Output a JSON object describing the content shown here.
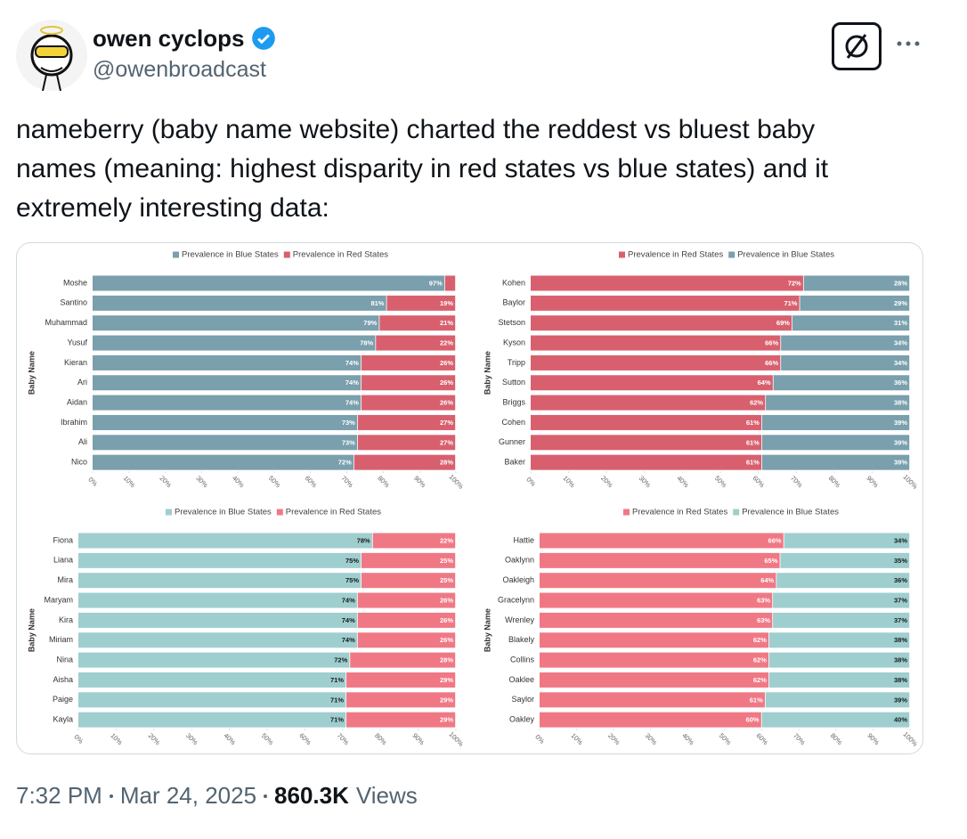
{
  "author": {
    "name": "owen cyclops",
    "handle": "@owenbroadcast"
  },
  "text": "nameberry (baby name website) charted the reddest vs bluest baby names (meaning: highest disparity in red states vs blue states) and it extremely interesting data:",
  "footer": {
    "time": "7:32 PM",
    "date": "Mar 24, 2025",
    "views": "860.3K",
    "views_label": "Views"
  },
  "chart_data": [
    {
      "type": "bar",
      "orientation": "horizontal",
      "stacked": true,
      "y_label": "Baby Name",
      "legend": "top",
      "categories": [
        "Moshe",
        "Santino",
        "Muhammad",
        "Yusuf",
        "Kieran",
        "Ari",
        "Aidan",
        "Ibrahim",
        "Ali",
        "Nico"
      ],
      "series": [
        {
          "name": "Prevalence in Blue States",
          "color": "#7a9fad",
          "values": [
            97,
            81,
            79,
            78,
            74,
            74,
            74,
            73,
            73,
            72
          ],
          "value_labels": [
            "97%",
            "81%",
            "79%",
            "78%",
            "74%",
            "74%",
            "74%",
            "73%",
            "73%",
            "72%"
          ]
        },
        {
          "name": "Prevalence in Red States",
          "color": "#d8606e",
          "values": [
            3,
            19,
            21,
            22,
            26,
            26,
            26,
            27,
            27,
            28
          ],
          "value_labels": [
            null,
            "19%",
            "21%",
            "22%",
            "26%",
            "26%",
            "26%",
            "27%",
            "27%",
            "28%"
          ]
        }
      ],
      "xlim": [
        0,
        100
      ],
      "xticks": [
        {
          "value": 0,
          "label": "0%"
        },
        {
          "value": 10,
          "label": "10%"
        },
        {
          "value": 20,
          "label": "20%"
        },
        {
          "value": 30,
          "label": "30%"
        },
        {
          "value": 40,
          "label": "40%"
        },
        {
          "value": 50,
          "label": "50%"
        },
        {
          "value": 60,
          "label": "60%"
        },
        {
          "value": 70,
          "label": "70%"
        },
        {
          "value": 80,
          "label": "80%"
        },
        {
          "value": 90,
          "label": "90%"
        },
        {
          "value": 100,
          "label": "100%"
        }
      ]
    },
    {
      "type": "bar",
      "orientation": "horizontal",
      "stacked": true,
      "y_label": "Baby Name",
      "legend": "top",
      "categories": [
        "Kohen",
        "Baylor",
        "Stetson",
        "Kyson",
        "Tripp",
        "Sutton",
        "Briggs",
        "Cohen",
        "Gunner",
        "Baker"
      ],
      "series": [
        {
          "name": "Prevalence in Red States",
          "color": "#d8606e",
          "values": [
            72,
            71,
            69,
            66,
            66,
            64,
            62,
            61,
            61,
            61
          ],
          "value_labels": [
            "72%",
            "71%",
            "69%",
            "66%",
            "66%",
            "64%",
            "62%",
            "61%",
            "61%",
            "61%"
          ]
        },
        {
          "name": "Prevalence in Blue States",
          "color": "#7a9fad",
          "values": [
            28,
            29,
            31,
            34,
            34,
            36,
            38,
            39,
            39,
            39
          ],
          "value_labels": [
            "28%",
            "29%",
            "31%",
            "34%",
            "34%",
            "36%",
            "38%",
            "39%",
            "39%",
            "39%"
          ]
        }
      ],
      "xlim": [
        0,
        100
      ],
      "xticks": [
        {
          "value": 0,
          "label": "0%"
        },
        {
          "value": 10,
          "label": "10%"
        },
        {
          "value": 20,
          "label": "20%"
        },
        {
          "value": 30,
          "label": "30%"
        },
        {
          "value": 40,
          "label": "40%"
        },
        {
          "value": 50,
          "label": "50%"
        },
        {
          "value": 60,
          "label": "60%"
        },
        {
          "value": 70,
          "label": "70%"
        },
        {
          "value": 80,
          "label": "80%"
        },
        {
          "value": 90,
          "label": "90%"
        },
        {
          "value": 100,
          "label": "100%"
        }
      ]
    },
    {
      "type": "bar",
      "orientation": "horizontal",
      "stacked": true,
      "y_label": "Baby Name",
      "legend": "top",
      "categories": [
        "Fiona",
        "Liana",
        "Mira",
        "Maryam",
        "Kira",
        "Miriam",
        "Nina",
        "Aisha",
        "Paige",
        "Kayla"
      ],
      "series": [
        {
          "name": "Prevalence in Blue States",
          "color": "#9fcecf",
          "values": [
            78,
            75,
            75,
            74,
            74,
            74,
            72,
            71,
            71,
            71
          ],
          "value_labels": [
            "78%",
            "75%",
            "75%",
            "74%",
            "74%",
            "74%",
            "72%",
            "71%",
            "71%",
            "71%"
          ]
        },
        {
          "name": "Prevalence in Red States",
          "color": "#f07885",
          "values": [
            22,
            25,
            25,
            26,
            26,
            26,
            28,
            29,
            29,
            29
          ],
          "value_labels": [
            "22%",
            "25%",
            "25%",
            "26%",
            "26%",
            "26%",
            "28%",
            "29%",
            "29%",
            "29%"
          ]
        }
      ],
      "xlim": [
        0,
        100
      ],
      "xticks": [
        {
          "value": 0,
          "label": "0%"
        },
        {
          "value": 10,
          "label": "10%"
        },
        {
          "value": 20,
          "label": "20%"
        },
        {
          "value": 30,
          "label": "30%"
        },
        {
          "value": 40,
          "label": "40%"
        },
        {
          "value": 50,
          "label": "50%"
        },
        {
          "value": 60,
          "label": "60%"
        },
        {
          "value": 70,
          "label": "70%"
        },
        {
          "value": 80,
          "label": "80%"
        },
        {
          "value": 90,
          "label": "90%"
        },
        {
          "value": 100,
          "label": "100%"
        }
      ]
    },
    {
      "type": "bar",
      "orientation": "horizontal",
      "stacked": true,
      "y_label": "Baby Name",
      "legend": "top",
      "categories": [
        "Hattie",
        "Oaklynn",
        "Oakleigh",
        "Gracelynn",
        "Wrenley",
        "Blakely",
        "Collins",
        "Oaklee",
        "Saylor",
        "Oakley"
      ],
      "series": [
        {
          "name": "Prevalence in Red States",
          "color": "#f07885",
          "values": [
            66,
            65,
            64,
            63,
            63,
            62,
            62,
            62,
            61,
            60
          ],
          "value_labels": [
            "66%",
            "65%",
            "64%",
            "63%",
            "63%",
            "62%",
            "62%",
            "62%",
            "61%",
            "60%"
          ]
        },
        {
          "name": "Prevalence in Blue States",
          "color": "#9fcecf",
          "values": [
            34,
            35,
            36,
            37,
            37,
            38,
            38,
            38,
            39,
            40
          ],
          "value_labels": [
            "34%",
            "35%",
            "36%",
            "37%",
            "37%",
            "38%",
            "38%",
            "38%",
            "39%",
            "40%"
          ]
        }
      ],
      "xlim": [
        0,
        100
      ],
      "xticks": [
        {
          "value": 0,
          "label": "0%"
        },
        {
          "value": 10,
          "label": "10%"
        },
        {
          "value": 20,
          "label": "20%"
        },
        {
          "value": 30,
          "label": "30%"
        },
        {
          "value": 40,
          "label": "40%"
        },
        {
          "value": 50,
          "label": "50%"
        },
        {
          "value": 60,
          "label": "60%"
        },
        {
          "value": 70,
          "label": "70%"
        },
        {
          "value": 80,
          "label": "80%"
        },
        {
          "value": 90,
          "label": "90%"
        },
        {
          "value": 100,
          "label": "100%"
        }
      ]
    }
  ]
}
